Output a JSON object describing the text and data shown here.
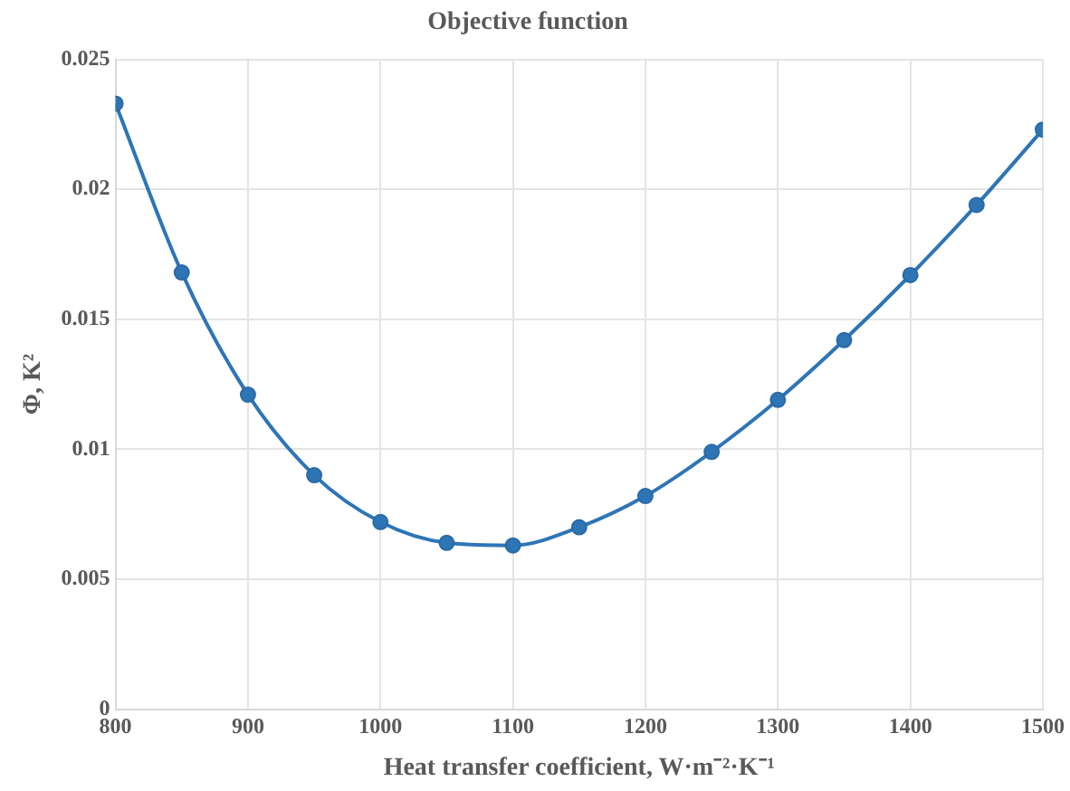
{
  "chart_data": {
    "type": "line",
    "title": "Objective function",
    "xlabel": "Heat transfer coefficient, W·m⁻²·K⁻¹",
    "ylabel": "Φ, K²",
    "x": [
      800,
      850,
      900,
      950,
      1000,
      1050,
      1100,
      1150,
      1200,
      1250,
      1300,
      1350,
      1400,
      1450,
      1500
    ],
    "series": [
      {
        "color": "#2e75b6",
        "values": [
          0.0233,
          0.0168,
          0.0121,
          0.009,
          0.0072,
          0.0064,
          0.0063,
          0.007,
          0.0082,
          0.0099,
          0.0119,
          0.0142,
          0.0167,
          0.0194,
          0.0223
        ]
      }
    ],
    "xlim": [
      800,
      1500
    ],
    "xticks": [
      800,
      900,
      1000,
      1100,
      1200,
      1300,
      1400,
      1500
    ],
    "ylim": [
      0,
      0.025
    ],
    "yticks": [
      0,
      0.005,
      0.01,
      0.015,
      0.02,
      0.025
    ],
    "grid": true,
    "legend": false,
    "marker": "circle",
    "line_style": "solid"
  }
}
